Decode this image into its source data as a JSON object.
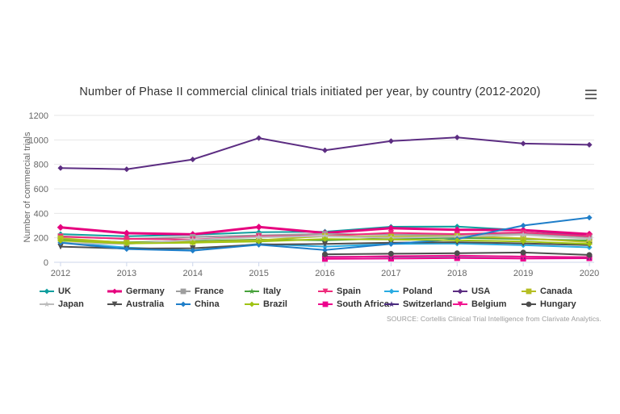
{
  "header": {
    "title": "Number of Phase II commercial clinical trials initiated per year, by country (2012-2020)",
    "menu_icon": "hamburger-menu-icon"
  },
  "source": "SOURCE: Cortellis Clinical Trial Intelligence from Clarivate Analytics.",
  "chart_data": {
    "type": "line",
    "title": "Number of Phase II commercial clinical trials initiated per year, by country (2012-2020)",
    "xlabel": "",
    "ylabel": "Number of commercial trials",
    "x": [
      2012,
      2013,
      2014,
      2015,
      2016,
      2017,
      2018,
      2019,
      2020
    ],
    "ylim": [
      0,
      1200
    ],
    "yticks": [
      0,
      200,
      400,
      600,
      800,
      1000,
      1200
    ],
    "grid": true,
    "legend_position": "bottom",
    "series": [
      {
        "name": "UK",
        "color": "#0e9e9e",
        "marker": "diamond",
        "line_width": 2,
        "values": [
          230,
          212,
          225,
          245,
          250,
          290,
          292,
          262,
          212
        ]
      },
      {
        "name": "Germany",
        "color": "#e6007e",
        "marker": "diamond",
        "line_width": 3,
        "values": [
          285,
          238,
          228,
          288,
          240,
          278,
          265,
          263,
          230
        ]
      },
      {
        "name": "France",
        "color": "#9e9e9e",
        "marker": "square",
        "line_width": 2,
        "values": [
          213,
          190,
          207,
          220,
          232,
          225,
          224,
          235,
          205
        ]
      },
      {
        "name": "Italy",
        "color": "#48a23c",
        "marker": "star",
        "line_width": 2,
        "values": [
          185,
          163,
          173,
          185,
          180,
          195,
          200,
          190,
          178
        ]
      },
      {
        "name": "Spain",
        "color": "#ee2a7b",
        "marker": "triangle-down",
        "line_width": 2,
        "values": [
          210,
          192,
          186,
          212,
          216,
          240,
          230,
          244,
          212
        ]
      },
      {
        "name": "Poland",
        "color": "#29abe2",
        "marker": "diamond",
        "line_width": 2,
        "values": [
          163,
          120,
          97,
          150,
          128,
          150,
          153,
          140,
          122
        ]
      },
      {
        "name": "USA",
        "color": "#5c2d82",
        "marker": "diamond",
        "line_width": 2,
        "values": [
          770,
          760,
          840,
          1015,
          915,
          990,
          1020,
          970,
          960
        ]
      },
      {
        "name": "Canada",
        "color": "#b5be23",
        "marker": "square",
        "line_width": 2,
        "values": [
          196,
          160,
          166,
          180,
          214,
          210,
          214,
          196,
          165
        ]
      },
      {
        "name": "Japan",
        "color": "#bcbcbc",
        "marker": "star",
        "line_width": 2,
        "values": [
          158,
          150,
          184,
          205,
          214,
          200,
          210,
          224,
          193
        ]
      },
      {
        "name": "Australia",
        "color": "#4f4f4f",
        "marker": "triangle-down",
        "line_width": 2,
        "values": [
          128,
          112,
          115,
          145,
          150,
          160,
          164,
          154,
          140
        ]
      },
      {
        "name": "China",
        "color": "#1f7ec9",
        "marker": "diamond",
        "line_width": 2,
        "values": [
          160,
          108,
          95,
          143,
          100,
          150,
          190,
          300,
          365
        ]
      },
      {
        "name": "Brazil",
        "color": "#9fc313",
        "marker": "diamond",
        "line_width": 2,
        "values": [
          176,
          154,
          160,
          170,
          190,
          186,
          180,
          170,
          150
        ]
      },
      {
        "name": "South Africa",
        "color": "#ec008c",
        "marker": "square",
        "line_width": 2,
        "values": [
          null,
          null,
          null,
          null,
          28,
          30,
          34,
          30,
          33
        ]
      },
      {
        "name": "Switzerland",
        "color": "#4b2c7f",
        "marker": "star",
        "line_width": 2,
        "values": [
          null,
          null,
          null,
          null,
          45,
          46,
          50,
          46,
          40
        ]
      },
      {
        "name": "Belgium",
        "color": "#f2138f",
        "marker": "triangle-down",
        "line_width": 2,
        "values": [
          null,
          null,
          null,
          null,
          40,
          50,
          55,
          46,
          42
        ]
      },
      {
        "name": "Hungary",
        "color": "#4d4d4d",
        "marker": "circle",
        "line_width": 2,
        "values": [
          null,
          null,
          null,
          null,
          65,
          70,
          74,
          80,
          60
        ]
      }
    ]
  }
}
